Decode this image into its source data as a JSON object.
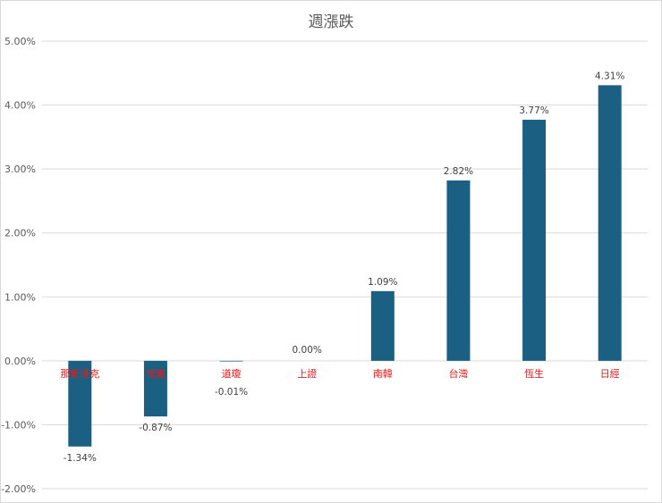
{
  "chart_data": {
    "type": "bar",
    "title": "週漲跌",
    "categories": [
      "那斯達克",
      "標普",
      "道瓊",
      "上證",
      "南韓",
      "台灣",
      "恆生",
      "日經"
    ],
    "values": [
      -1.34,
      -0.87,
      -0.01,
      0.0,
      1.09,
      2.82,
      3.77,
      4.31
    ],
    "data_labels": [
      "-1.34%",
      "-0.87%",
      "-0.01%",
      "0.00%",
      "1.09%",
      "2.82%",
      "3.77%",
      "4.31%"
    ],
    "y_ticks": [
      "5.00%",
      "4.00%",
      "3.00%",
      "2.00%",
      "1.00%",
      "0.00%",
      "-1.00%",
      "-2.00%"
    ],
    "ylim": [
      -2,
      5
    ],
    "xlabel": "",
    "ylabel": "",
    "grid": true,
    "legend": "none",
    "bar_color": "#1b6082",
    "category_label_color": "#e31c1c"
  }
}
